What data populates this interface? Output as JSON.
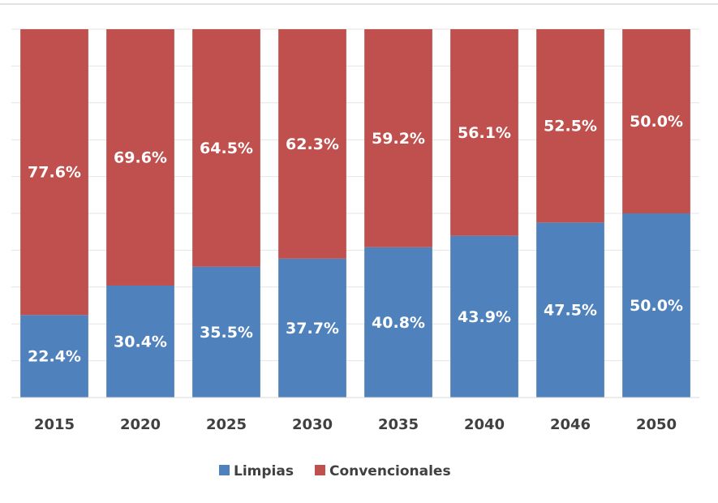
{
  "chart_data": {
    "type": "stacked_bar",
    "categories": [
      "2015",
      "2020",
      "2025",
      "2030",
      "2035",
      "2040",
      "2046",
      "2050"
    ],
    "series": [
      {
        "name": "Limpias",
        "color": "#4f81bd",
        "values": [
          22.4,
          30.4,
          35.5,
          37.7,
          40.8,
          43.9,
          47.5,
          50.0
        ],
        "value_labels": [
          "22.4%",
          "30.4%",
          "35.5%",
          "37.7%",
          "40.8%",
          "43.9%",
          "47.5%",
          "50.0%"
        ]
      },
      {
        "name": "Convencionales",
        "color": "#c0504d",
        "values": [
          77.6,
          69.6,
          64.5,
          62.3,
          59.2,
          56.1,
          52.5,
          50.0
        ],
        "value_labels": [
          "77.6%",
          "69.6%",
          "64.5%",
          "62.3%",
          "59.2%",
          "56.1%",
          "52.5%",
          "50.0%"
        ]
      }
    ],
    "ylim": [
      0,
      100
    ],
    "yticks": [
      0,
      10,
      20,
      30,
      40,
      50,
      60,
      70,
      80,
      90,
      100
    ],
    "grid": true,
    "legend": "bottom"
  }
}
